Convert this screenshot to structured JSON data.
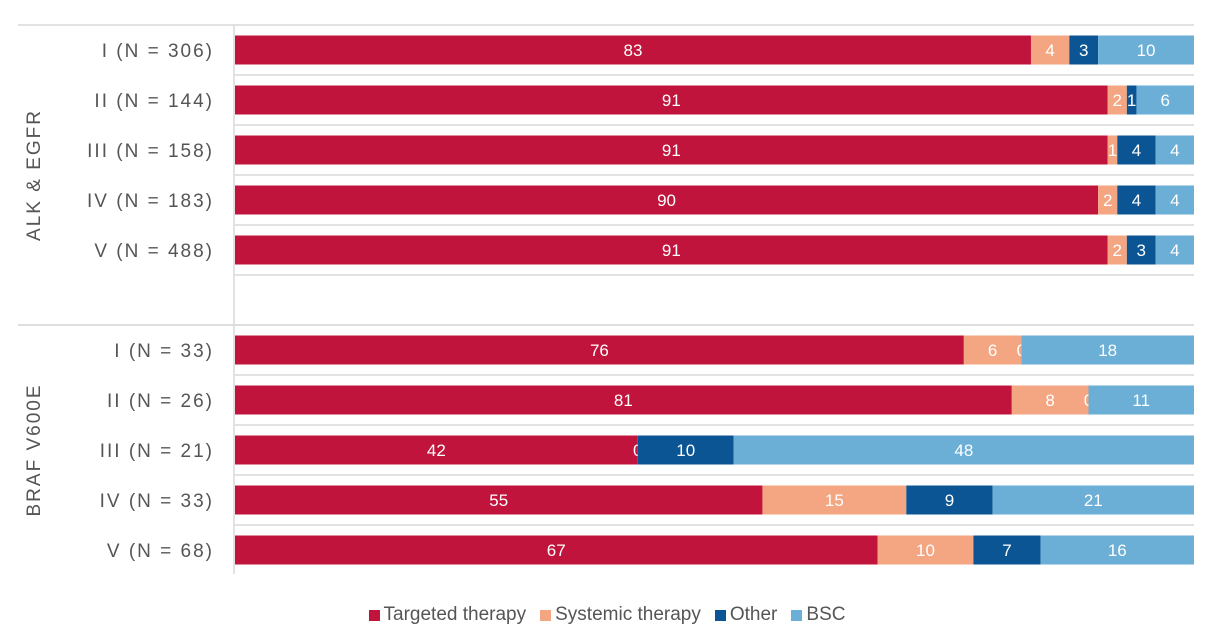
{
  "chart_data": {
    "type": "bar",
    "orientation": "horizontal",
    "stacked": true,
    "stack_mode": "percent",
    "grid": false,
    "legend_position": "bottom",
    "groups": [
      {
        "label": "ALK & EGFR",
        "categories": [
          "I (N = 306)",
          "II (N = 144)",
          "III (N = 158)",
          "IV (N = 183)",
          "V (N = 488)"
        ]
      },
      {
        "label": "BRAF V600E",
        "categories": [
          "I (N = 33)",
          "II (N = 26)",
          "III (N = 21)",
          "IV (N = 33)",
          "V (N = 68)"
        ]
      }
    ],
    "series": [
      {
        "name": "Targeted therapy",
        "color": "#C0143C",
        "label_color": "#ffffff",
        "values": [
          [
            83,
            91,
            91,
            90,
            91
          ],
          [
            76,
            81,
            42,
            55,
            67
          ]
        ]
      },
      {
        "name": "Systemic therapy",
        "color": "#F4A582",
        "label_color": "#ffffff",
        "values": [
          [
            4,
            2,
            1,
            2,
            2
          ],
          [
            6,
            8,
            0,
            15,
            10
          ]
        ]
      },
      {
        "name": "Other",
        "color": "#0B5594",
        "label_color": "#ffffff",
        "values": [
          [
            3,
            1,
            4,
            4,
            3
          ],
          [
            0,
            0,
            10,
            9,
            7
          ]
        ]
      },
      {
        "name": "BSC",
        "color": "#6BAED6",
        "label_color": "#ffffff",
        "values": [
          [
            10,
            6,
            4,
            4,
            4
          ],
          [
            18,
            11,
            48,
            21,
            16
          ]
        ]
      }
    ]
  }
}
